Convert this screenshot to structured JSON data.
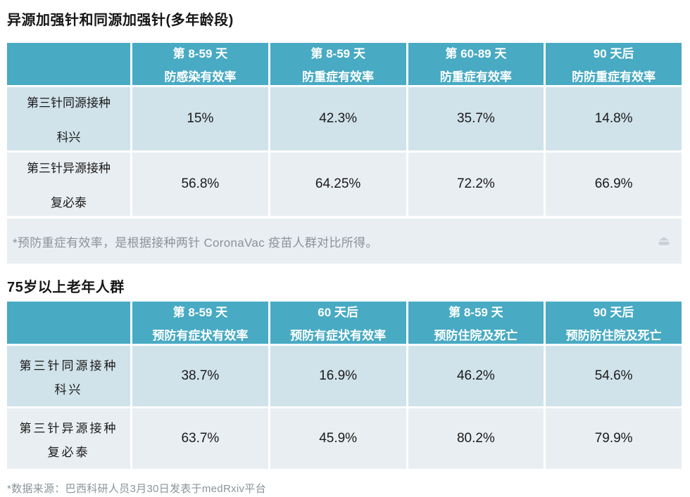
{
  "colors": {
    "header_teal": "#48aac3",
    "row_light_blue": "#d0e2ea",
    "row_pale": "#e9eef2",
    "note_band_bg": "#e8eef2",
    "note_text": "#8b9399",
    "value_text": "#1a1a1a"
  },
  "icons": {
    "eject_glyph": "⏏"
  },
  "sections": [
    {
      "title": "异源加强针和同源加强针(多年龄段)",
      "columns": [
        {
          "line1": "第 8-59 天",
          "line2": "防感染有效率"
        },
        {
          "line1": "第 8-59 天",
          "line2": "防重症有效率"
        },
        {
          "line1": "第 60-89 天",
          "line2": "防重症有效率"
        },
        {
          "line1": "90 天后",
          "line2": "防防重症有效率"
        }
      ],
      "rows": [
        {
          "label_line1": "第三针同源接种",
          "label_line2": "科兴",
          "values": [
            "15%",
            "42.3%",
            "35.7%",
            "14.8%"
          ]
        },
        {
          "label_line1": "第三针异源接种",
          "label_line2": "复必泰",
          "values": [
            "56.8%",
            "64.25%",
            "72.2%",
            "66.9%"
          ]
        }
      ],
      "note": "*预防重症有效率，是根据接种两针 CoronaVac 疫苗人群对比所得。"
    },
    {
      "title": "75岁以上老年人群",
      "columns": [
        {
          "line1": "第 8-59 天",
          "line2": "预防有症状有效率"
        },
        {
          "line1": "60 天后",
          "line2": "预防有症状有效率"
        },
        {
          "line1": "第 8-59 天",
          "line2": "预防住院及死亡"
        },
        {
          "line1": "90 天后",
          "line2": "预防防住院及死亡"
        }
      ],
      "rows": [
        {
          "label_line1": "第三针同源接种",
          "label_line2": "科兴",
          "values": [
            "38.7%",
            "16.9%",
            "46.2%",
            "54.6%"
          ]
        },
        {
          "label_line1": "第三针异源接种",
          "label_line2": "复必泰",
          "values": [
            "63.7%",
            "45.9%",
            "80.2%",
            "79.9%"
          ]
        }
      ],
      "note": "*数据来源：巴西科研人员3月30日发表于medRxiv平台"
    }
  ],
  "chart_data": [
    {
      "type": "table",
      "title": "异源加强针和同源加强针(多年龄段)",
      "columns": [
        "",
        "第 8-59 天 防感染有效率",
        "第 8-59 天 防重症有效率",
        "第 60-89 天 防重症有效率",
        "90 天后 防防重症有效率"
      ],
      "rows": [
        [
          "第三针同源接种 科兴",
          "15%",
          "42.3%",
          "35.7%",
          "14.8%"
        ],
        [
          "第三针异源接种 复必泰",
          "56.8%",
          "64.25%",
          "72.2%",
          "66.9%"
        ]
      ],
      "note": "*预防重症有效率，是根据接种两针 CoronaVac 疫苗人群对比所得。"
    },
    {
      "type": "table",
      "title": "75岁以上老年人群",
      "columns": [
        "",
        "第 8-59 天 预防有症状有效率",
        "60 天后 预防有症状有效率",
        "第 8-59 天 预防住院及死亡",
        "90 天后 预防防住院及死亡"
      ],
      "rows": [
        [
          "第三针同源接种 科兴",
          "38.7%",
          "16.9%",
          "46.2%",
          "54.6%"
        ],
        [
          "第三针异源接种 复必泰",
          "63.7%",
          "45.9%",
          "80.2%",
          "79.9%"
        ]
      ],
      "note": "*数据来源：巴西科研人员3月30日发表于medRxiv平台"
    }
  ]
}
